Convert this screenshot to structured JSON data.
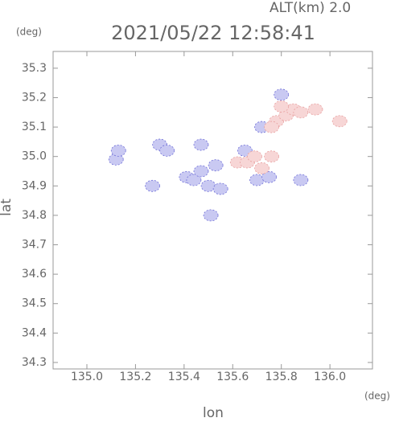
{
  "header": {
    "altitude": "ALT(km)  2.0",
    "unit_y": "(deg)",
    "unit_x": "(deg)"
  },
  "chart_data": {
    "type": "scatter",
    "title": "2021/05/22 12:58:41",
    "x_label": "lon",
    "y_label": "lat",
    "xlim": [
      134.861,
      136.175
    ],
    "ylim": [
      34.278,
      35.357
    ],
    "xticks": [
      {
        "value": 135,
        "label": "135.0"
      },
      135.2,
      135.4,
      135.6,
      135.8,
      {
        "value": 136,
        "label": "136.0"
      }
    ],
    "yticks": [
      34.3,
      34.4,
      34.5,
      34.6,
      34.7,
      34.8,
      34.9,
      {
        "value": 35,
        "label": "35.0"
      },
      35.1,
      35.2,
      35.3
    ],
    "series": [
      {
        "color": "#c9c9f2",
        "x": [
          135.12,
          135.13,
          135.27,
          135.3,
          135.33,
          135.41,
          135.44,
          135.47,
          135.5,
          135.47,
          135.55,
          135.53,
          135.51,
          135.65,
          135.7,
          135.75,
          135.72,
          135.8,
          135.88
        ],
        "y": [
          34.99,
          35.02,
          34.9,
          35.04,
          35.02,
          34.93,
          34.92,
          34.95,
          34.9,
          35.04,
          34.89,
          34.97,
          34.8,
          35.02,
          34.92,
          34.93,
          35.1,
          35.21,
          34.92
        ]
      },
      {
        "color": "#f7d6d6",
        "x": [
          135.62,
          135.66,
          135.69,
          135.72,
          135.76,
          135.78,
          135.82,
          135.85,
          135.88,
          135.76,
          135.94,
          136.04,
          135.8
        ],
        "y": [
          34.98,
          34.98,
          35.0,
          34.96,
          35.0,
          35.12,
          35.14,
          35.16,
          35.15,
          35.1,
          35.16,
          35.12,
          35.17
        ]
      }
    ]
  }
}
